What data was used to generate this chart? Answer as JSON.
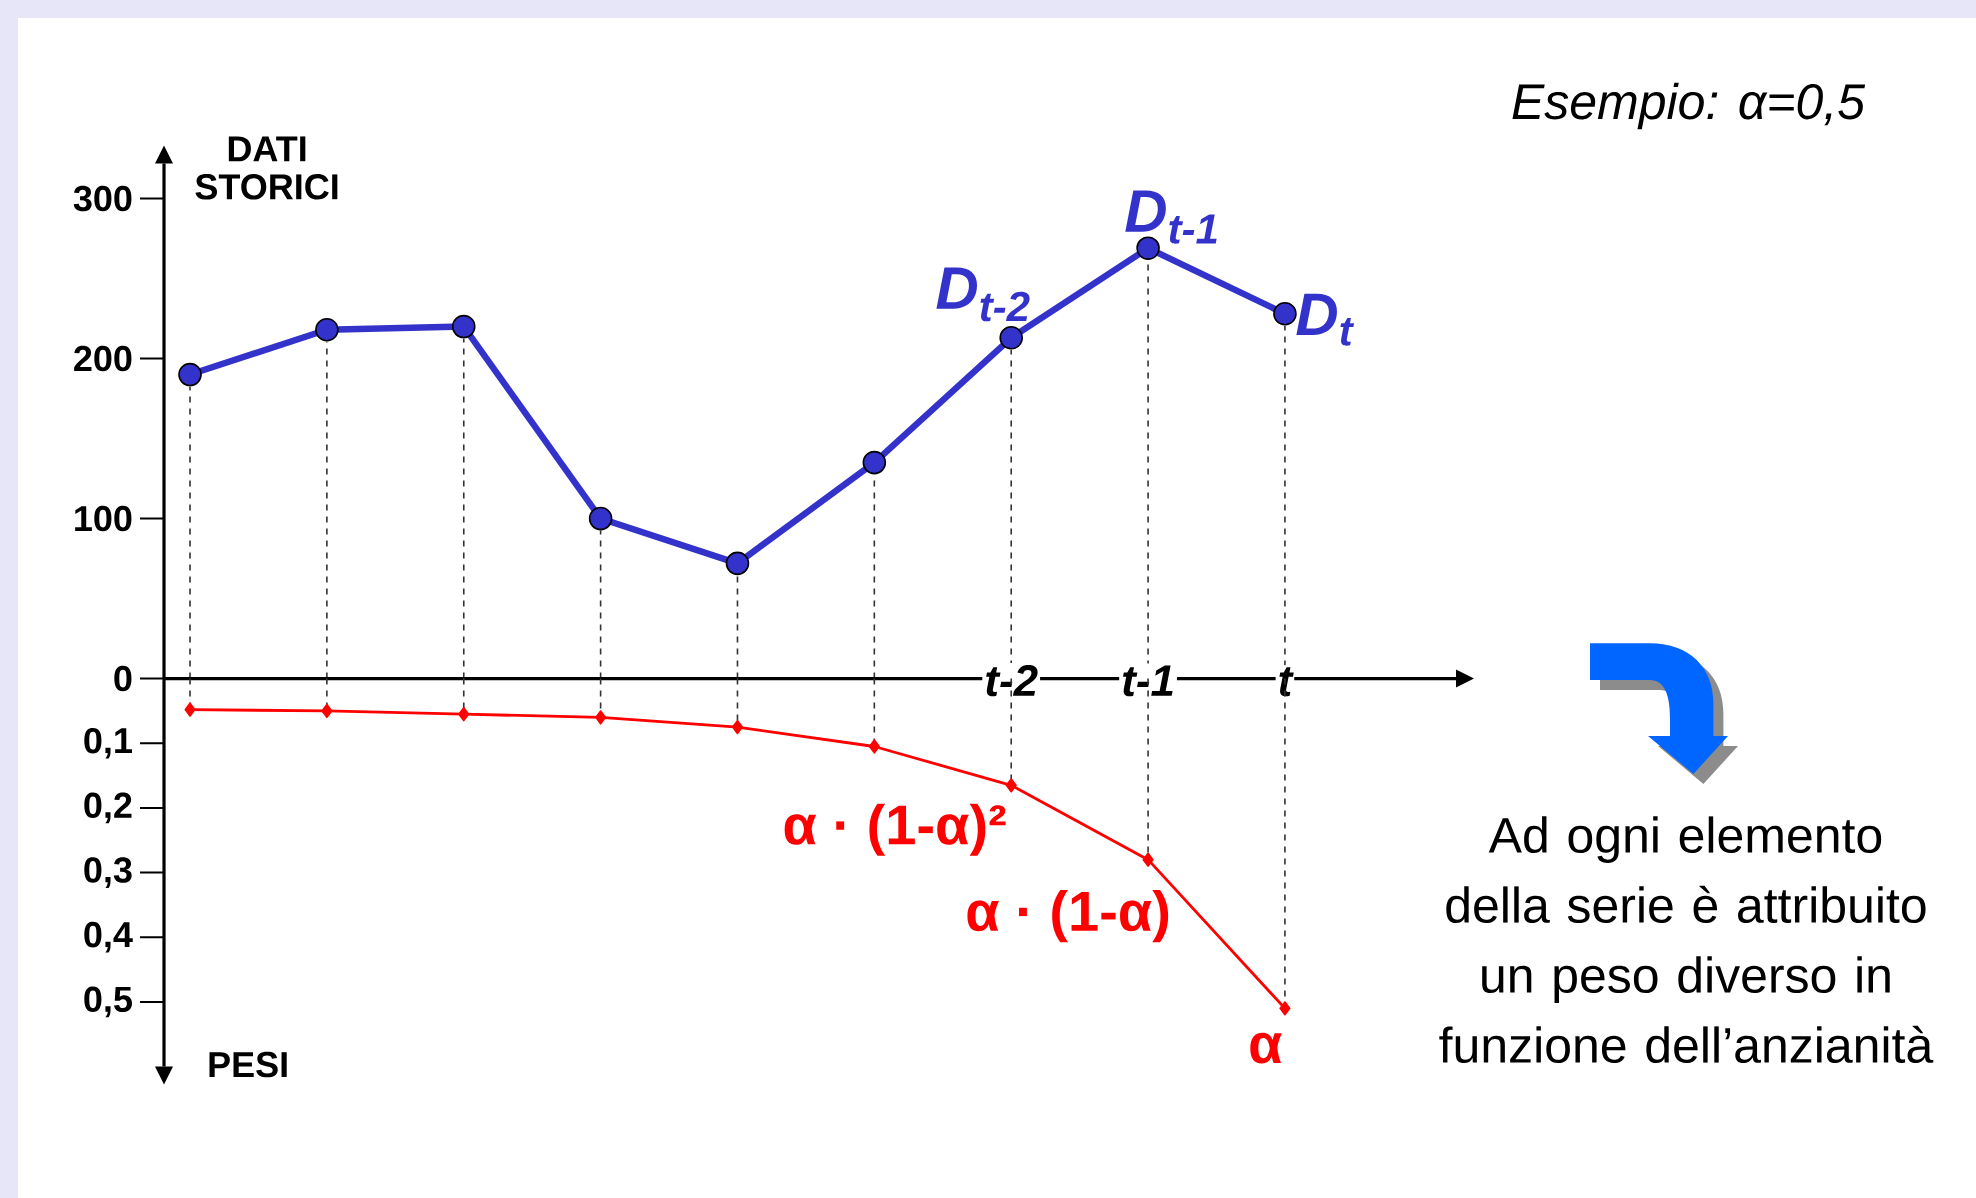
{
  "chart_data": [
    {
      "type": "line",
      "ylabel": "DATI STORICI",
      "categories": [
        null,
        null,
        null,
        null,
        null,
        null,
        "t-2",
        "t-1",
        "t"
      ],
      "series": [
        {
          "color": "#3333cc",
          "values": [
            190,
            218,
            220,
            100,
            72,
            135,
            213,
            269,
            228
          ]
        }
      ],
      "ylim": [
        0,
        322
      ],
      "yticks": [
        0,
        100,
        200,
        300
      ],
      "marker": "circle",
      "annotations": [
        "Esempio: α=0,5",
        {
          "text": "D$_{t-2}$",
          "x": "t-2",
          "y": 213
        },
        {
          "text": "D$_{t-1}$",
          "x": "t-1",
          "y": 269
        },
        {
          "text": "D$_{t}$",
          "x": "t",
          "y": 228
        }
      ]
    },
    {
      "type": "line",
      "ylabel": "PESI",
      "categories": [
        null,
        null,
        null,
        null,
        null,
        null,
        "t-2",
        "t-1",
        "t"
      ],
      "series": [
        {
          "color": "#ff0000",
          "values": [
            0.048,
            0.05,
            0.055,
            0.06,
            0.075,
            0.105,
            0.165,
            0.28,
            0.51
          ]
        }
      ],
      "ylim": [
        0.6,
        0
      ],
      "yticks": [
        {
          "value": 0.1,
          "label": "0,1"
        },
        {
          "value": 0.2,
          "label": "0,2"
        },
        {
          "value": 0.3,
          "label": "0,3"
        },
        {
          "value": 0.4,
          "label": "0,4"
        },
        {
          "value": 0.5,
          "label": "0,5"
        }
      ],
      "marker": "diamond",
      "tick_labels": "y",
      "annotations": [
        "Ad ogni elemento della serie è attribuito un peso diverso in funzione dell’anzianità",
        {
          "text": "α · (1-α)²",
          "x": "t-2",
          "y": 0.165
        },
        {
          "text": "α · (1-α)",
          "x": "t-1",
          "y": 0.28
        },
        {
          "text": "α",
          "x": "t",
          "y": 0.51
        }
      ]
    }
  ]
}
